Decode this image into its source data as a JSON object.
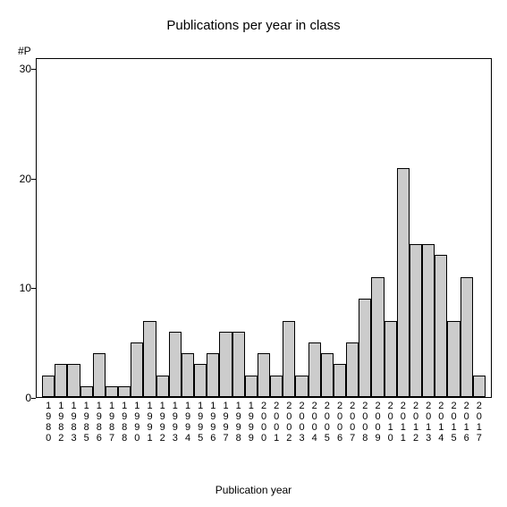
{
  "chart": {
    "type": "bar",
    "title": "Publications per year in class",
    "title_fontsize": 15,
    "y_axis_label": "#P",
    "x_axis_label": "Publication year",
    "label_fontsize": 12,
    "background_color": "#ffffff",
    "bar_fill_color": "#cccccc",
    "bar_border_color": "#000000",
    "axis_color": "#000000",
    "text_color": "#000000",
    "ylim": [
      0,
      31
    ],
    "yticks": [
      0,
      10,
      20,
      30
    ],
    "bar_width_ratio": 1.0,
    "categories": [
      "1980",
      "1982",
      "1983",
      "1985",
      "1986",
      "1987",
      "1988",
      "1990",
      "1991",
      "1992",
      "1993",
      "1994",
      "1995",
      "1996",
      "1997",
      "1998",
      "1999",
      "2000",
      "2001",
      "2002",
      "2003",
      "2004",
      "2005",
      "2006",
      "2007",
      "2008",
      "2009",
      "2010",
      "2011",
      "2012",
      "2013",
      "2014",
      "2015",
      "2016",
      "2017"
    ],
    "values": [
      2,
      3,
      3,
      1,
      4,
      1,
      1,
      5,
      7,
      2,
      6,
      4,
      3,
      4,
      6,
      6,
      2,
      4,
      2,
      7,
      2,
      5,
      4,
      3,
      5,
      9,
      11,
      7,
      21,
      14,
      14,
      13,
      7,
      11,
      2
    ]
  }
}
